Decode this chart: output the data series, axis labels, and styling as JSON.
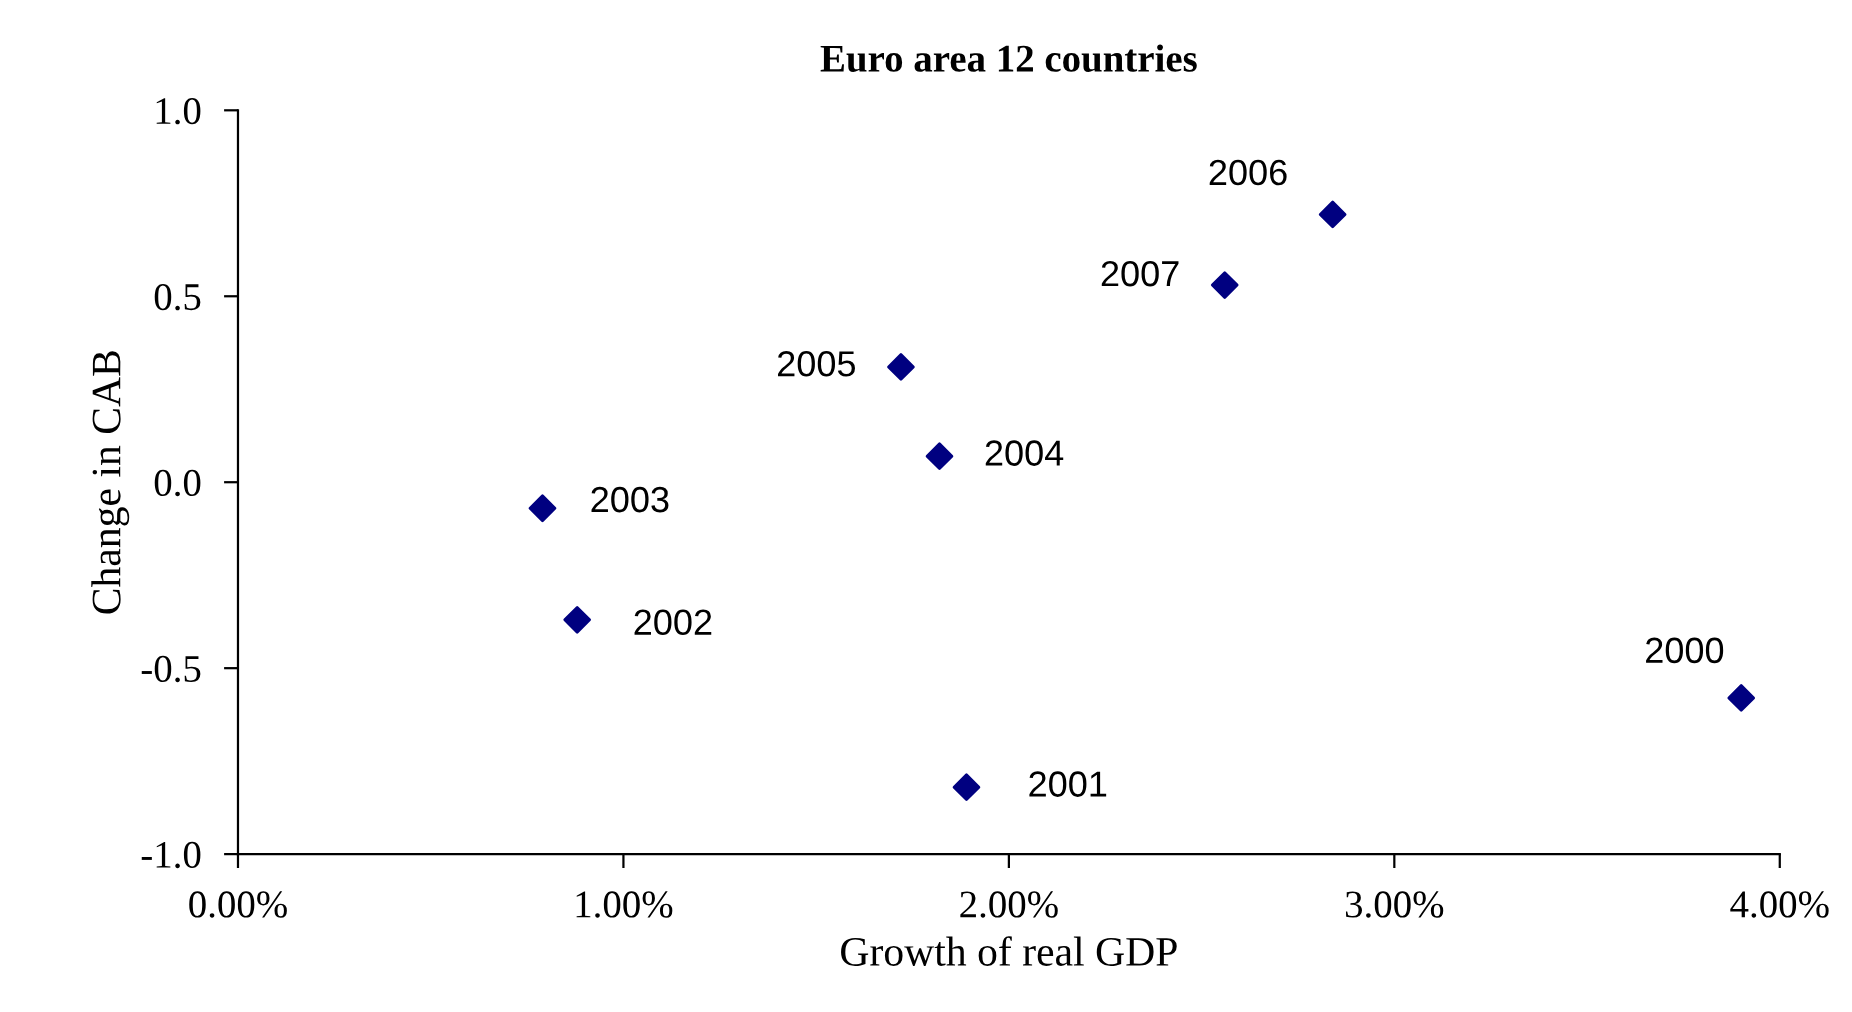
{
  "chart_data": {
    "type": "scatter",
    "title": "Euro area 12 countries",
    "xlabel": "Growth of real GDP",
    "ylabel": "Change in CAB",
    "x": [
      3.9,
      1.89,
      0.88,
      0.79,
      1.82,
      1.72,
      2.84,
      2.56
    ],
    "series": [
      {
        "color": "#000080",
        "values": [
          -0.58,
          -0.82,
          -0.37,
          -0.07,
          0.07,
          0.31,
          0.72,
          0.53
        ]
      }
    ],
    "marker": "diamond",
    "grid": false,
    "xlim": [
      0,
      4
    ],
    "ylim": [
      -1,
      1
    ],
    "xticks": [
      {
        "value": 0,
        "label": "0.00%"
      },
      {
        "value": 1,
        "label": "1.00%"
      },
      {
        "value": 2,
        "label": "2.00%"
      },
      {
        "value": 3,
        "label": "3.00%"
      },
      {
        "value": 4,
        "label": "4.00%"
      }
    ],
    "yticks": [
      {
        "value": -1,
        "label": "-1.0"
      },
      {
        "value": -0.5,
        "label": "-0.5"
      },
      {
        "value": 0,
        "label": "0.0"
      },
      {
        "value": 0.5,
        "label": "0.5"
      },
      {
        "value": 1,
        "label": "1.0"
      }
    ],
    "annotations": [
      {
        "text": "2000",
        "x": 3.9,
        "y": -0.58
      },
      {
        "text": "2001",
        "x": 1.89,
        "y": -0.82
      },
      {
        "text": "2002",
        "x": 0.88,
        "y": -0.37
      },
      {
        "text": "2003",
        "x": 0.79,
        "y": -0.07
      },
      {
        "text": "2004",
        "x": 1.82,
        "y": 0.07
      },
      {
        "text": "2005",
        "x": 1.72,
        "y": 0.31
      },
      {
        "text": "2006",
        "x": 2.84,
        "y": 0.72
      },
      {
        "text": "2007",
        "x": 2.56,
        "y": 0.53
      }
    ]
  }
}
